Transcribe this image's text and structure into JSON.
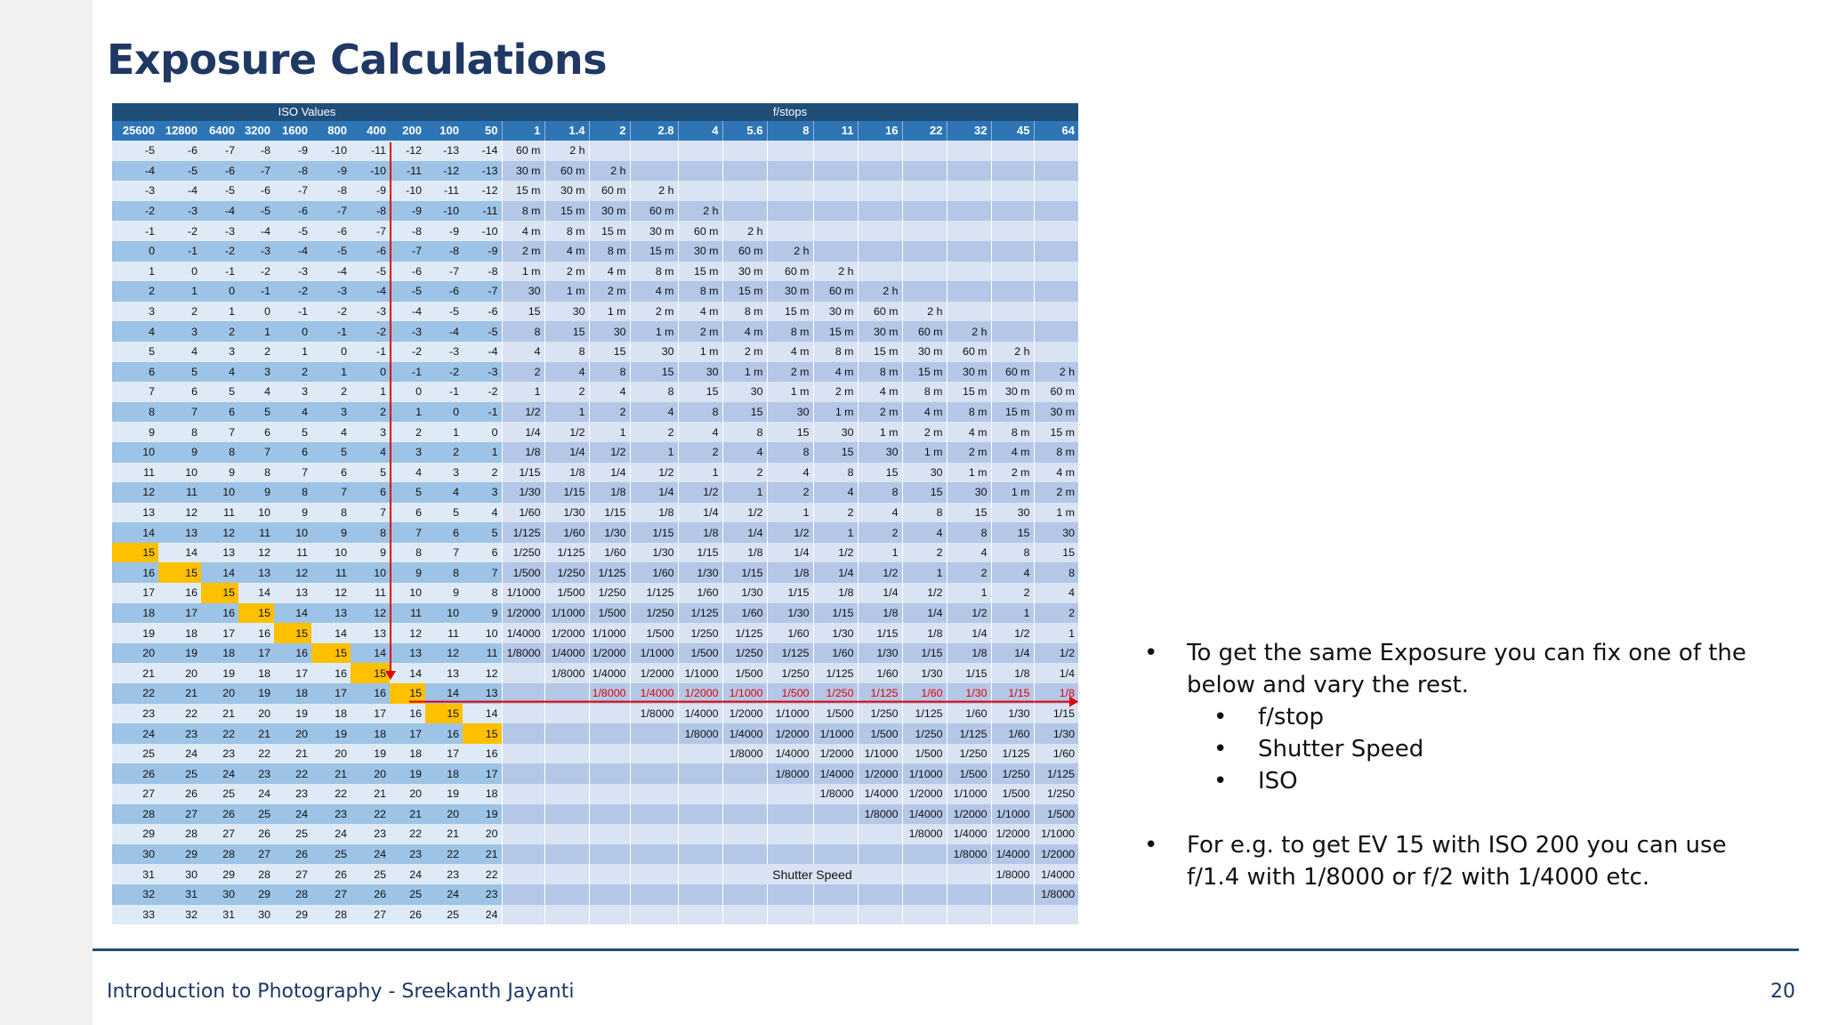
{
  "title": "Exposure Calculations",
  "table": {
    "iso_group_label": "ISO Values",
    "fstop_group_label": "f/stops",
    "iso_headers": [
      "25600",
      "12800",
      "6400",
      "3200",
      "1600",
      "800",
      "400",
      "200",
      "100",
      "50"
    ],
    "fstop_headers": [
      "1",
      "1.4",
      "2",
      "2.8",
      "4",
      "5.6",
      "8",
      "11",
      "16",
      "22",
      "32",
      "45",
      "64"
    ],
    "iso_start_row0": -5,
    "times": [
      "2 h",
      "60 m",
      "30 m",
      "15 m",
      "8 m",
      "4 m",
      "2 m",
      "1 m",
      "30",
      "15",
      "8",
      "4",
      "2",
      "1",
      "1/2",
      "1/4",
      "1/8",
      "1/15",
      "1/30",
      "1/60",
      "1/125",
      "1/250",
      "1/500",
      "1/1000",
      "1/2000",
      "1/4000",
      "1/8000"
    ],
    "highlight_note": "EV 15 diagonal highlighted",
    "shutter_speed_label": "Shutter Speed"
  },
  "bullets": {
    "b1": "To get the same Exposure you can fix one of the below and vary the rest.",
    "sub": [
      "f/stop",
      "Shutter Speed",
      "ISO"
    ],
    "b2": "For e.g. to get EV 15 with ISO 200 you can use f/1.4 with 1/8000 or f/2 with 1/4000 etc.",
    "bullet_char": "•"
  },
  "footer": {
    "text": "Introduction to Photography - Sreekanth Jayanti",
    "page": "20"
  },
  "colors": {
    "title": "#1f3864",
    "header_dark": "#1f4e79",
    "header_mid": "#2e75b6",
    "iso_dark": "#9dc3e6",
    "iso_light": "#deebf7",
    "fs_dark": "#b4c7e7",
    "fs_light": "#dae3f3",
    "highlight": "#ffc000",
    "arrow": "#e00000"
  }
}
